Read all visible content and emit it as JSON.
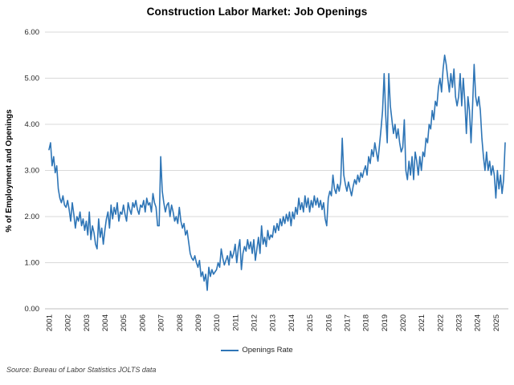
{
  "header": {
    "title": "Construction Labor Market: Job Openings"
  },
  "footer": {
    "source": "Source: Bureau of Labor Statistics JOLTS data"
  },
  "colors": {
    "line": "#2E75B6",
    "gridline": "#D9D9D9",
    "axis_line": "#BFBFBF",
    "tick_text": "#262626",
    "background": "#FFFFFF"
  },
  "chart_data": {
    "type": "line",
    "title": "Construction Labor Market: Job Openings",
    "xlabel": "",
    "ylabel": "% of Employment and Openings",
    "ylim": [
      0,
      6
    ],
    "y_tick_labels": [
      "0.00",
      "1.00",
      "2.00",
      "3.00",
      "4.00",
      "5.00",
      "6.00"
    ],
    "x_tick_labels": [
      "2001",
      "2002",
      "2003",
      "2004",
      "2005",
      "2006",
      "2007",
      "2008",
      "2009",
      "2010",
      "2011",
      "2012",
      "2013",
      "2014",
      "2015",
      "2016",
      "2017",
      "2018",
      "2019",
      "2020",
      "2021",
      "2022",
      "2023",
      "2024",
      "2025"
    ],
    "x_unit": "monthly, Jan 2001 through mid 2025",
    "grid": "horizontal",
    "legend_position": "bottom",
    "series": [
      {
        "name": "Openings Rate",
        "color": "#2E75B6",
        "values": [
          3.45,
          3.6,
          3.1,
          3.3,
          2.95,
          3.1,
          2.6,
          2.4,
          2.3,
          2.45,
          2.25,
          2.2,
          2.35,
          2.15,
          1.9,
          2.3,
          2.05,
          1.75,
          2.0,
          1.9,
          2.1,
          1.8,
          1.95,
          1.7,
          1.9,
          1.6,
          2.1,
          1.5,
          1.8,
          1.65,
          1.4,
          1.3,
          1.95,
          1.55,
          1.75,
          1.4,
          1.7,
          1.95,
          2.1,
          1.75,
          2.25,
          1.95,
          2.2,
          2.05,
          2.3,
          1.9,
          2.1,
          2.05,
          2.25,
          2.05,
          1.9,
          2.3,
          2.15,
          2.05,
          2.3,
          2.2,
          2.35,
          2.15,
          2.05,
          2.25,
          2.2,
          2.35,
          2.1,
          2.4,
          2.25,
          2.3,
          2.1,
          2.5,
          2.3,
          2.2,
          1.8,
          1.8,
          3.3,
          2.55,
          2.3,
          2.1,
          2.25,
          2.3,
          2.0,
          2.25,
          2.1,
          1.9,
          2.0,
          1.85,
          2.2,
          1.9,
          1.75,
          1.85,
          1.6,
          1.7,
          1.45,
          1.2,
          1.1,
          1.05,
          1.15,
          1.0,
          0.9,
          1.05,
          0.7,
          0.8,
          0.6,
          0.75,
          0.4,
          0.9,
          0.7,
          0.85,
          0.75,
          0.8,
          0.85,
          1.0,
          0.9,
          1.3,
          1.1,
          0.95,
          1.05,
          1.15,
          0.95,
          1.25,
          1.1,
          1.2,
          1.4,
          1.0,
          1.3,
          1.5,
          0.85,
          1.2,
          1.35,
          1.25,
          1.5,
          1.3,
          1.45,
          1.2,
          1.5,
          1.05,
          1.3,
          1.55,
          1.2,
          1.8,
          1.4,
          1.55,
          1.35,
          1.7,
          1.5,
          1.6,
          1.55,
          1.8,
          1.65,
          1.85,
          1.7,
          1.95,
          1.8,
          2.0,
          1.85,
          2.05,
          1.9,
          2.1,
          1.8,
          2.1,
          1.95,
          2.2,
          2.05,
          2.4,
          2.15,
          2.3,
          2.1,
          2.45,
          2.2,
          2.4,
          2.1,
          2.35,
          2.2,
          2.45,
          2.25,
          2.4,
          2.2,
          2.35,
          2.15,
          2.3,
          1.95,
          1.8,
          2.4,
          2.55,
          2.45,
          2.9,
          2.6,
          2.5,
          2.7,
          2.55,
          2.75,
          3.7,
          2.9,
          2.7,
          2.55,
          2.75,
          2.6,
          2.45,
          2.65,
          2.8,
          2.7,
          2.9,
          2.75,
          2.95,
          2.85,
          3.0,
          3.1,
          2.9,
          3.3,
          3.15,
          3.45,
          3.3,
          3.6,
          3.4,
          3.2,
          3.55,
          3.9,
          4.3,
          5.1,
          4.2,
          3.6,
          5.1,
          4.4,
          4.1,
          3.8,
          4.0,
          3.7,
          3.9,
          3.6,
          3.4,
          3.5,
          4.1,
          3.0,
          2.8,
          3.2,
          2.9,
          3.3,
          2.8,
          3.4,
          3.2,
          2.9,
          3.3,
          3.0,
          3.4,
          3.3,
          3.7,
          3.6,
          4.0,
          3.9,
          4.3,
          4.1,
          4.5,
          4.4,
          4.8,
          5.0,
          4.7,
          5.2,
          5.5,
          5.3,
          5.0,
          4.7,
          5.1,
          4.8,
          5.2,
          4.6,
          4.4,
          4.6,
          5.1,
          4.4,
          5.0,
          4.5,
          3.8,
          4.6,
          4.3,
          3.6,
          4.4,
          5.3,
          4.6,
          4.4,
          4.6,
          4.3,
          3.7,
          3.3,
          3.0,
          3.4,
          3.0,
          3.2,
          2.9,
          3.1,
          2.9,
          2.4,
          3.0,
          2.6,
          2.9,
          2.5,
          2.8,
          3.6
        ]
      }
    ]
  }
}
